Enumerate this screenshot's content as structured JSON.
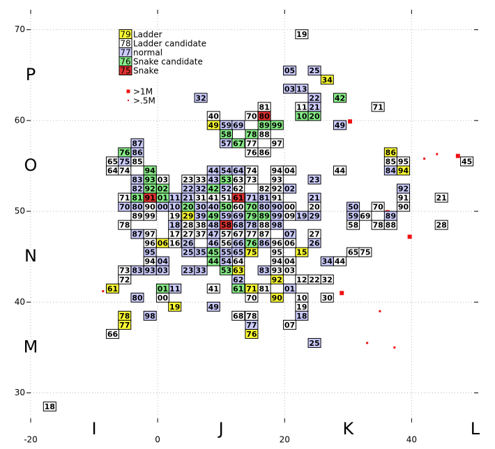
{
  "chart_data": {
    "type": "grid-map",
    "xlim": [
      -20,
      50.5
    ],
    "ylim": [
      27.2,
      72.2
    ],
    "xticks": [
      -20,
      0,
      20,
      40
    ],
    "yticks": [
      30,
      40,
      50,
      60,
      70
    ],
    "grid": true,
    "lat_zones": {
      "labels": [
        "P",
        "O",
        "N",
        "M"
      ],
      "y": [
        65,
        55,
        45,
        35
      ]
    },
    "lon_zones": {
      "labels": [
        "I",
        "J",
        "K",
        "L"
      ],
      "x": [
        -10,
        10,
        30,
        50
      ]
    },
    "series": [
      {
        "name": "Ladder",
        "code": "79",
        "color": "#ffff33",
        "labels": [
          "34",
          "32",
          "49",
          "86",
          "94",
          "29",
          "06",
          "75",
          "15",
          "63",
          "92",
          "61",
          "71",
          "90",
          "19",
          "78",
          "77",
          "76"
        ],
        "x": [
          26.7,
          24.7,
          8.8,
          36.7,
          38.7,
          4.8,
          0.8,
          14.8,
          22.7,
          12.7,
          18.8,
          -7.1,
          14.8,
          18.8,
          2.7,
          -5.2,
          -5.2,
          14.8
        ],
        "y": [
          64.5,
          62.5,
          59.5,
          56.5,
          54.5,
          49.5,
          46.5,
          45.5,
          45.5,
          43.5,
          42.5,
          41.5,
          41.5,
          40.5,
          39.5,
          38.5,
          37.5,
          36.5
        ]
      },
      {
        "name": "Ladder candidate",
        "code": "78",
        "color": "#ffffff",
        "labels": [
          "19",
          "71",
          "81",
          "11",
          "40",
          "70",
          "88",
          "77",
          "97",
          "76",
          "86",
          "65",
          "85",
          "85",
          "95",
          "45",
          "64",
          "74",
          "74",
          "94",
          "04",
          "44",
          "03",
          "23",
          "33",
          "63",
          "73",
          "93",
          "62",
          "82",
          "92",
          "71",
          "31",
          "41",
          "51",
          "91",
          "91",
          "21",
          "90",
          "60",
          "00",
          "20",
          "70",
          "90",
          "89",
          "99",
          "19",
          "09",
          "69",
          "78",
          "28",
          "38",
          "88",
          "58",
          "78",
          "88",
          "28",
          "97",
          "17",
          "27",
          "37",
          "57",
          "67",
          "77",
          "87",
          "27",
          "96",
          "16",
          "56",
          "96",
          "06",
          "95",
          "65",
          "75",
          "94",
          "64",
          "94",
          "04",
          "44",
          "73",
          "93",
          "03",
          "72",
          "12",
          "22",
          "32",
          "41",
          "81",
          "00",
          "70",
          "10",
          "30",
          "19",
          "68",
          "78",
          "07",
          "66",
          "18"
        ],
        "x": [
          22.7,
          34.7,
          16.8,
          22.7,
          8.8,
          14.8,
          16.8,
          14.8,
          18.8,
          14.8,
          16.8,
          -7.1,
          -3.2,
          36.7,
          38.7,
          48.7,
          -7.1,
          -5.2,
          14.8,
          18.8,
          20.8,
          28.7,
          0.8,
          4.8,
          6.8,
          12.7,
          14.8,
          18.8,
          12.7,
          16.8,
          18.8,
          -5.2,
          6.8,
          8.8,
          10.8,
          18.8,
          38.7,
          44.7,
          -1.2,
          12.7,
          20.8,
          24.7,
          34.7,
          38.7,
          -3.2,
          -1.2,
          2.7,
          20.8,
          32.7,
          -5.2,
          4.8,
          6.8,
          16.8,
          30.8,
          34.7,
          36.7,
          44.7,
          -1.2,
          2.7,
          4.8,
          6.8,
          10.8,
          12.7,
          14.8,
          16.8,
          24.7,
          -1.2,
          2.7,
          10.8,
          18.8,
          20.8,
          18.8,
          30.8,
          32.7,
          -1.2,
          12.7,
          18.8,
          20.8,
          28.7,
          -5.2,
          18.8,
          20.8,
          -5.2,
          22.7,
          24.7,
          26.7,
          8.8,
          16.8,
          0.8,
          14.8,
          22.7,
          26.7,
          22.7,
          12.7,
          14.8,
          20.8,
          -7.1,
          -17.0
        ],
        "y": [
          69.5,
          61.5,
          61.5,
          61.5,
          60.5,
          60.5,
          58.5,
          57.5,
          57.5,
          56.5,
          56.5,
          55.5,
          55.5,
          55.5,
          55.5,
          55.5,
          54.5,
          54.5,
          54.5,
          54.5,
          54.5,
          54.5,
          53.5,
          53.5,
          53.5,
          53.5,
          53.5,
          53.5,
          52.5,
          52.5,
          52.5,
          51.5,
          51.5,
          51.5,
          51.5,
          51.5,
          51.5,
          51.5,
          50.5,
          50.5,
          50.5,
          50.5,
          50.5,
          50.5,
          49.5,
          49.5,
          49.5,
          49.5,
          49.5,
          48.5,
          48.5,
          48.5,
          48.5,
          48.5,
          48.5,
          48.5,
          48.5,
          47.5,
          47.5,
          47.5,
          47.5,
          47.5,
          47.5,
          47.5,
          47.5,
          47.5,
          46.5,
          46.5,
          46.5,
          46.5,
          46.5,
          45.5,
          45.5,
          45.5,
          44.5,
          44.5,
          44.5,
          44.5,
          44.5,
          43.5,
          43.5,
          43.5,
          42.5,
          42.5,
          42.5,
          42.5,
          41.5,
          41.5,
          40.5,
          40.5,
          40.5,
          40.5,
          39.5,
          38.5,
          38.5,
          37.5,
          36.5,
          28.5
        ]
      },
      {
        "name": "normal",
        "code": "77",
        "color": "#ccccff",
        "labels": [
          "05",
          "25",
          "03",
          "13",
          "22",
          "32",
          "21",
          "59",
          "69",
          "49",
          "87",
          "57",
          "86",
          "75",
          "44",
          "54",
          "64",
          "84",
          "83",
          "43",
          "23",
          "82",
          "22",
          "32",
          "52",
          "02",
          "92",
          "11",
          "21",
          "71",
          "81",
          "21",
          "70",
          "80",
          "00",
          "10",
          "30",
          "40",
          "80",
          "90",
          "50",
          "39",
          "59",
          "69",
          "99",
          "19",
          "29",
          "59",
          "89",
          "18",
          "48",
          "68",
          "78",
          "98",
          "87",
          "47",
          "07",
          "26",
          "46",
          "66",
          "86",
          "26",
          "95",
          "25",
          "35",
          "55",
          "65",
          "04",
          "54",
          "34",
          "83",
          "93",
          "03",
          "23",
          "33",
          "83",
          "62",
          "11",
          "01",
          "80",
          "49",
          "98",
          "18",
          "77",
          "25"
        ],
        "x": [
          20.8,
          24.7,
          20.8,
          22.7,
          24.7,
          6.8,
          24.7,
          10.8,
          12.7,
          28.7,
          -3.2,
          10.8,
          -3.2,
          -5.2,
          8.8,
          10.8,
          12.7,
          36.7,
          -3.2,
          8.8,
          24.7,
          -3.2,
          4.8,
          6.8,
          10.8,
          20.8,
          38.7,
          2.7,
          4.8,
          14.8,
          16.8,
          24.7,
          -5.2,
          -3.2,
          0.8,
          2.7,
          6.8,
          8.8,
          16.8,
          18.8,
          30.8,
          6.8,
          10.8,
          12.7,
          18.8,
          22.7,
          24.7,
          30.8,
          36.7,
          2.7,
          8.8,
          12.7,
          14.8,
          18.8,
          -3.2,
          8.8,
          20.8,
          4.8,
          8.8,
          12.7,
          16.8,
          24.7,
          -1.2,
          4.8,
          6.8,
          10.8,
          12.7,
          0.8,
          10.8,
          26.7,
          -3.2,
          -1.2,
          0.8,
          4.8,
          6.8,
          16.8,
          12.7,
          2.7,
          20.8,
          -3.2,
          8.8,
          -1.2,
          22.7,
          14.8,
          24.7
        ],
        "y": [
          65.5,
          65.5,
          63.5,
          63.5,
          62.5,
          62.5,
          61.5,
          59.5,
          59.5,
          59.5,
          57.5,
          57.5,
          56.5,
          55.5,
          54.5,
          54.5,
          54.5,
          54.5,
          53.5,
          53.5,
          53.5,
          52.5,
          52.5,
          52.5,
          52.5,
          52.5,
          52.5,
          51.5,
          51.5,
          51.5,
          51.5,
          51.5,
          50.5,
          50.5,
          50.5,
          50.5,
          50.5,
          50.5,
          50.5,
          50.5,
          50.5,
          49.5,
          49.5,
          49.5,
          49.5,
          49.5,
          49.5,
          49.5,
          49.5,
          48.5,
          48.5,
          48.5,
          48.5,
          48.5,
          47.5,
          47.5,
          47.5,
          46.5,
          46.5,
          46.5,
          46.5,
          46.5,
          45.5,
          45.5,
          45.5,
          45.5,
          45.5,
          44.5,
          44.5,
          44.5,
          43.5,
          43.5,
          43.5,
          43.5,
          43.5,
          43.5,
          42.5,
          41.5,
          41.5,
          40.5,
          39.5,
          38.5,
          38.5,
          37.5,
          35.5
        ]
      },
      {
        "name": "Snake candidate",
        "code": "76",
        "color": "#88ee88",
        "labels": [
          "42",
          "10",
          "20",
          "89",
          "99",
          "58",
          "78",
          "67",
          "76",
          "94",
          "93",
          "53",
          "92",
          "02",
          "42",
          "81",
          "01",
          "20",
          "50",
          "70",
          "49",
          "79",
          "89",
          "76",
          "45",
          "44",
          "53",
          "01",
          "61"
        ],
        "x": [
          28.7,
          22.7,
          24.7,
          16.8,
          18.8,
          10.8,
          14.8,
          12.7,
          -5.2,
          -1.2,
          -1.2,
          10.8,
          -1.2,
          0.8,
          8.8,
          -3.2,
          0.8,
          4.8,
          10.8,
          14.8,
          8.8,
          14.8,
          16.8,
          14.8,
          8.8,
          8.8,
          10.8,
          0.8,
          12.7
        ],
        "y": [
          62.5,
          60.5,
          60.5,
          59.5,
          59.5,
          58.5,
          58.5,
          57.5,
          56.5,
          54.5,
          53.5,
          53.5,
          52.5,
          52.5,
          52.5,
          51.5,
          51.5,
          50.5,
          50.5,
          50.5,
          49.5,
          49.5,
          49.5,
          46.5,
          45.5,
          44.5,
          43.5,
          41.5,
          41.5
        ]
      },
      {
        "name": "Snake",
        "code": "75",
        "color": "#e03030",
        "labels": [
          "80",
          "91",
          "61",
          "58"
        ],
        "x": [
          16.8,
          -1.2,
          12.7,
          10.8
        ],
        "y": [
          60.5,
          51.5,
          51.5,
          48.5
        ]
      }
    ],
    "cities": [
      {
        "name": ">1M",
        "color": "#ee1111",
        "x": [
          37.6,
          30.3,
          -0.1,
          2.3,
          -3.7,
          12.5,
          13.4,
          29.0,
          2.2,
          16.4,
          21.0,
          24.0,
          44.5,
          49.1,
          39.7,
          36.2,
          30.5,
          47.3
        ],
        "y": [
          55.8,
          59.9,
          51.5,
          48.9,
          40.4,
          41.9,
          52.5,
          41.0,
          41.4,
          48.2,
          52.2,
          47.0,
          48.7,
          55.8,
          47.2,
          49.9,
          50.4,
          56.1
        ]
      },
      {
        "name": ">.5M",
        "color": "#ee1111",
        "x": [
          -6.0,
          -8.6,
          5.4,
          8.7,
          11.6,
          14.3,
          19.9,
          26.1,
          23.3,
          44.0,
          42.0,
          37.3,
          33.0,
          35.0
        ],
        "y": [
          37.4,
          41.2,
          43.3,
          50.1,
          48.1,
          46.1,
          50.1,
          44.4,
          42.7,
          56.3,
          55.8,
          35.0,
          35.5,
          39.0
        ]
      }
    ]
  }
}
